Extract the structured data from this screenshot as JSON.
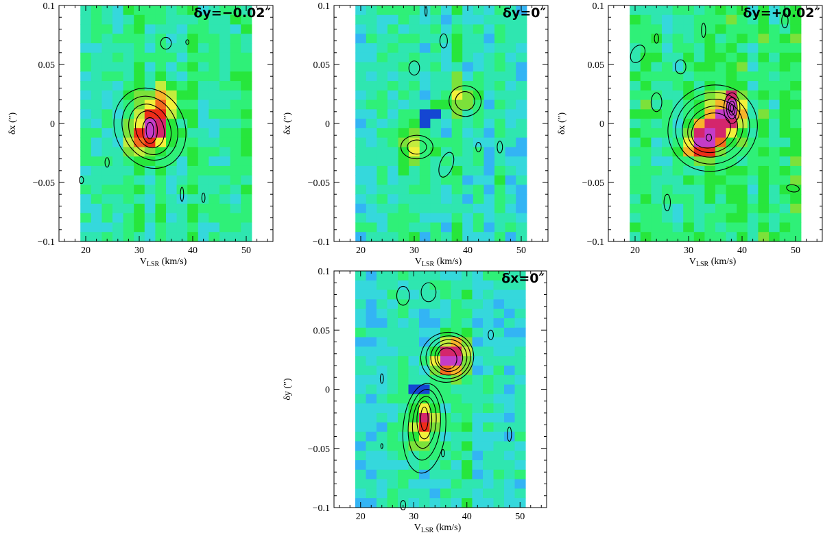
{
  "colors": {
    "background": "#ffffff",
    "axis": "#000000",
    "contour": "#000000",
    "colormap": [
      "#1446d2",
      "#2c7cf0",
      "#33b4f4",
      "#35d8dc",
      "#2fe6b0",
      "#2ff078",
      "#27e63c",
      "#7ce13a",
      "#c4ec3e",
      "#f2f03a",
      "#f8b42a",
      "#f46a1e",
      "#ee2c18",
      "#d4266c",
      "#c43cc8"
    ]
  },
  "chart_data": [
    {
      "id": "panel-dy-neg",
      "type": "heatmap",
      "title": "δy=−0.02″",
      "xlabel_main": "V",
      "xlabel_sub": "LSR",
      "xlabel_unit": " (km/s)",
      "ylabel": "δx (″)",
      "xlim": [
        15,
        55
      ],
      "ylim": [
        -0.1,
        0.1
      ],
      "data_xrange": [
        19,
        51
      ],
      "xticks": [
        20,
        30,
        40,
        50
      ],
      "yticks": [
        -0.1,
        -0.05,
        0,
        0.05,
        0.1
      ],
      "yticklabels": [
        "−0.1",
        "−0.05",
        "0",
        "0.05",
        "0.1"
      ],
      "seed": 11,
      "background_level": 0.34,
      "peaks": [
        {
          "v": 32.2,
          "d": -0.006,
          "amp": 0.62,
          "sv": 1.4,
          "sd": 0.012
        },
        {
          "v": 34.5,
          "d": 0.012,
          "amp": 0.36,
          "sv": 2.2,
          "sd": 0.016
        },
        {
          "v": 30.0,
          "d": -0.012,
          "amp": 0.22,
          "sv": 2.0,
          "sd": 0.012
        }
      ],
      "contours": [
        {
          "v": 32.0,
          "d": -0.004,
          "rv": 6.5,
          "rd": 0.035,
          "rot": -25
        },
        {
          "v": 32.0,
          "d": -0.004,
          "rv": 5.0,
          "rd": 0.028,
          "rot": -25
        },
        {
          "v": 32.0,
          "d": -0.005,
          "rv": 3.8,
          "rd": 0.022,
          "rot": -22
        },
        {
          "v": 32.0,
          "d": -0.005,
          "rv": 2.6,
          "rd": 0.016,
          "rot": -18
        },
        {
          "v": 32.0,
          "d": -0.006,
          "rv": 1.4,
          "rd": 0.011,
          "rot": 0
        },
        {
          "v": 32.0,
          "d": -0.006,
          "rv": 0.7,
          "rd": 0.007,
          "rot": 0
        },
        {
          "v": 35.0,
          "d": 0.068,
          "rv": 1.0,
          "rd": 0.005,
          "rot": 0
        },
        {
          "v": 39.0,
          "d": 0.069,
          "rv": 0.3,
          "rd": 0.002,
          "rot": 0
        },
        {
          "v": 24.0,
          "d": -0.033,
          "rv": 0.4,
          "rd": 0.004,
          "rot": 0
        },
        {
          "v": 38.0,
          "d": -0.06,
          "rv": 0.3,
          "rd": 0.006,
          "rot": 0
        },
        {
          "v": 42.0,
          "d": -0.063,
          "rv": 0.3,
          "rd": 0.004,
          "rot": 0
        },
        {
          "v": 19.2,
          "d": -0.048,
          "rv": 0.4,
          "rd": 0.003,
          "rot": 0
        }
      ]
    },
    {
      "id": "panel-dy-zero",
      "type": "heatmap",
      "title": "δy=0″",
      "xlabel_main": "V",
      "xlabel_sub": "LSR",
      "xlabel_unit": " (km/s)",
      "ylabel": "δx (″)",
      "xlim": [
        15,
        55
      ],
      "ylim": [
        -0.1,
        0.1
      ],
      "data_xrange": [
        19,
        51
      ],
      "xticks": [
        20,
        30,
        40,
        50
      ],
      "yticks": [
        -0.1,
        -0.05,
        0,
        0.05,
        0.1
      ],
      "yticklabels": [
        "−0.1",
        "−0.05",
        "0",
        "0.05",
        "0.1"
      ],
      "seed": 23,
      "background_level": 0.3,
      "peaks": [
        {
          "v": 30.5,
          "d": -0.02,
          "amp": 0.26,
          "sv": 2.2,
          "sd": 0.009
        },
        {
          "v": 39.0,
          "d": 0.02,
          "amp": 0.26,
          "sv": 2.2,
          "sd": 0.011
        },
        {
          "v": 36.0,
          "d": -0.034,
          "amp": 0.16,
          "sv": 1.2,
          "sd": 0.01
        }
      ],
      "dark_cells": [
        {
          "v": 32.0,
          "d": 0.003
        },
        {
          "v": 34.0,
          "d": 0.011
        },
        {
          "v": 32.0,
          "d": 0.011
        }
      ],
      "contours": [
        {
          "v": 30.5,
          "d": -0.02,
          "rv": 3.0,
          "rd": 0.01,
          "rot": 0
        },
        {
          "v": 30.5,
          "d": -0.02,
          "rv": 1.8,
          "rd": 0.006,
          "rot": 0
        },
        {
          "v": 39.5,
          "d": 0.019,
          "rv": 3.0,
          "rd": 0.013,
          "rot": 10
        },
        {
          "v": 39.5,
          "d": 0.019,
          "rv": 1.8,
          "rd": 0.008,
          "rot": 10
        },
        {
          "v": 36.0,
          "d": -0.035,
          "rv": 1.2,
          "rd": 0.011,
          "rot": 20
        },
        {
          "v": 30.0,
          "d": 0.047,
          "rv": 1.0,
          "rd": 0.006,
          "rot": 0
        },
        {
          "v": 35.5,
          "d": 0.07,
          "rv": 0.7,
          "rd": 0.006,
          "rot": 0
        },
        {
          "v": 32.2,
          "d": 0.095,
          "rv": 0.2,
          "rd": 0.004,
          "rot": 0
        },
        {
          "v": 42.0,
          "d": -0.02,
          "rv": 0.5,
          "rd": 0.004,
          "rot": 0
        },
        {
          "v": 46.0,
          "d": -0.02,
          "rv": 0.5,
          "rd": 0.005,
          "rot": 0
        }
      ]
    },
    {
      "id": "panel-dy-pos",
      "type": "heatmap",
      "title": "δy=+0.02″",
      "xlabel_main": "V",
      "xlabel_sub": "LSR",
      "xlabel_unit": " (km/s)",
      "ylabel": "δx (″)",
      "xlim": [
        15,
        55
      ],
      "ylim": [
        -0.1,
        0.1
      ],
      "data_xrange": [
        19,
        51
      ],
      "xticks": [
        20,
        30,
        40,
        50
      ],
      "yticks": [
        -0.1,
        -0.05,
        0,
        0.05,
        0.1
      ],
      "yticklabels": [
        "−0.1",
        "−0.05",
        "0",
        "0.05",
        "0.1"
      ],
      "seed": 37,
      "background_level": 0.38,
      "peaks": [
        {
          "v": 38.0,
          "d": 0.013,
          "amp": 0.7,
          "sv": 1.2,
          "sd": 0.009
        },
        {
          "v": 34.0,
          "d": -0.01,
          "amp": 0.55,
          "sv": 1.6,
          "sd": 0.01
        },
        {
          "v": 31.5,
          "d": -0.018,
          "amp": 0.42,
          "sv": 2.0,
          "sd": 0.009
        },
        {
          "v": 36.0,
          "d": 0.004,
          "amp": 0.35,
          "sv": 2.2,
          "sd": 0.014
        }
      ],
      "contours": [
        {
          "v": 34.5,
          "d": -0.004,
          "rv": 8.5,
          "rd": 0.036,
          "rot": -30
        },
        {
          "v": 34.5,
          "d": -0.004,
          "rv": 7.0,
          "rd": 0.03,
          "rot": -30
        },
        {
          "v": 34.5,
          "d": -0.004,
          "rv": 5.8,
          "rd": 0.024,
          "rot": -30
        },
        {
          "v": 34.5,
          "d": -0.005,
          "rv": 4.8,
          "rd": 0.019,
          "rot": -30
        },
        {
          "v": 34.2,
          "d": -0.006,
          "rv": 3.8,
          "rd": 0.014,
          "rot": -30
        },
        {
          "v": 38.1,
          "d": 0.013,
          "rv": 1.5,
          "rd": 0.013,
          "rot": 0
        },
        {
          "v": 38.1,
          "d": 0.013,
          "rv": 1.0,
          "rd": 0.009,
          "rot": 0
        },
        {
          "v": 38.1,
          "d": 0.013,
          "rv": 0.6,
          "rd": 0.006,
          "rot": 0
        },
        {
          "v": 38.1,
          "d": 0.013,
          "rv": 0.3,
          "rd": 0.003,
          "rot": 0
        },
        {
          "v": 33.8,
          "d": -0.012,
          "rv": 0.5,
          "rd": 0.003,
          "rot": 0
        },
        {
          "v": 20.5,
          "d": 0.059,
          "rv": 1.2,
          "rd": 0.008,
          "rot": 30
        },
        {
          "v": 24.0,
          "d": 0.072,
          "rv": 0.4,
          "rd": 0.004,
          "rot": 0
        },
        {
          "v": 28.5,
          "d": 0.048,
          "rv": 1.0,
          "rd": 0.006,
          "rot": 0
        },
        {
          "v": 32.8,
          "d": 0.079,
          "rv": 0.4,
          "rd": 0.006,
          "rot": 0
        },
        {
          "v": 24.0,
          "d": 0.018,
          "rv": 1.0,
          "rd": 0.008,
          "rot": 0
        },
        {
          "v": 26.0,
          "d": -0.067,
          "rv": 0.6,
          "rd": 0.007,
          "rot": 0
        },
        {
          "v": 49.5,
          "d": -0.055,
          "rv": 1.2,
          "rd": 0.003,
          "rot": 10
        },
        {
          "v": 48.0,
          "d": 0.087,
          "rv": 0.6,
          "rd": 0.006,
          "rot": 0
        }
      ]
    },
    {
      "id": "panel-dx-zero",
      "type": "heatmap",
      "title": "δx=0″",
      "xlabel_main": "V",
      "xlabel_sub": "LSR",
      "xlabel_unit": " (km/s)",
      "ylabel": "δy (″)",
      "xlim": [
        15,
        55
      ],
      "ylim": [
        -0.1,
        0.1
      ],
      "data_xrange": [
        19,
        51
      ],
      "xticks": [
        20,
        30,
        40,
        50
      ],
      "yticks": [
        -0.1,
        -0.05,
        0,
        0.05,
        0.1
      ],
      "yticklabels": [
        "−0.1",
        "−0.05",
        "0",
        "0.05",
        "0.1"
      ],
      "seed": 53,
      "background_level": 0.3,
      "peaks": [
        {
          "v": 36.0,
          "d": 0.025,
          "amp": 0.58,
          "sv": 1.8,
          "sd": 0.009
        },
        {
          "v": 38.0,
          "d": 0.03,
          "amp": 0.4,
          "sv": 1.6,
          "sd": 0.011
        },
        {
          "v": 32.0,
          "d": -0.025,
          "amp": 0.56,
          "sv": 1.4,
          "sd": 0.011
        },
        {
          "v": 32.0,
          "d": -0.045,
          "amp": 0.25,
          "sv": 1.8,
          "sd": 0.01
        }
      ],
      "dark_cells": [
        {
          "v": 32.0,
          "d": 0.003
        },
        {
          "v": 30.0,
          "d": 0.003
        }
      ],
      "contours": [
        {
          "v": 36.3,
          "d": 0.027,
          "rv": 5.0,
          "rd": 0.021,
          "rot": -15
        },
        {
          "v": 36.5,
          "d": 0.027,
          "rv": 4.2,
          "rd": 0.018,
          "rot": -15
        },
        {
          "v": 36.6,
          "d": 0.027,
          "rv": 3.4,
          "rd": 0.015,
          "rot": -15
        },
        {
          "v": 36.6,
          "d": 0.027,
          "rv": 2.6,
          "rd": 0.012,
          "rot": -15
        },
        {
          "v": 36.3,
          "d": 0.026,
          "rv": 1.8,
          "rd": 0.009,
          "rot": -15
        },
        {
          "v": 32.0,
          "d": -0.033,
          "rv": 4.0,
          "rd": 0.038,
          "rot": 5
        },
        {
          "v": 32.0,
          "d": -0.03,
          "rv": 3.0,
          "rd": 0.03,
          "rot": 5
        },
        {
          "v": 32.0,
          "d": -0.028,
          "rv": 2.2,
          "rd": 0.022,
          "rot": 5
        },
        {
          "v": 32.0,
          "d": -0.026,
          "rv": 1.4,
          "rd": 0.016,
          "rot": 0
        },
        {
          "v": 32.0,
          "d": -0.025,
          "rv": 0.7,
          "rd": 0.01,
          "rot": 0
        },
        {
          "v": 28.0,
          "d": 0.079,
          "rv": 1.2,
          "rd": 0.008,
          "rot": 0
        },
        {
          "v": 32.8,
          "d": 0.082,
          "rv": 1.4,
          "rd": 0.008,
          "rot": 0
        },
        {
          "v": 44.5,
          "d": 0.046,
          "rv": 0.5,
          "rd": 0.004,
          "rot": 0
        },
        {
          "v": 24.0,
          "d": 0.009,
          "rv": 0.3,
          "rd": 0.004,
          "rot": 0
        },
        {
          "v": 24.0,
          "d": -0.048,
          "rv": 0.2,
          "rd": 0.002,
          "rot": 0
        },
        {
          "v": 48.0,
          "d": -0.038,
          "rv": 0.4,
          "rd": 0.006,
          "rot": 0
        },
        {
          "v": 35.5,
          "d": -0.054,
          "rv": 0.3,
          "rd": 0.003,
          "rot": 0
        },
        {
          "v": 28.0,
          "d": -0.098,
          "rv": 0.5,
          "rd": 0.004,
          "rot": 0
        }
      ]
    }
  ]
}
